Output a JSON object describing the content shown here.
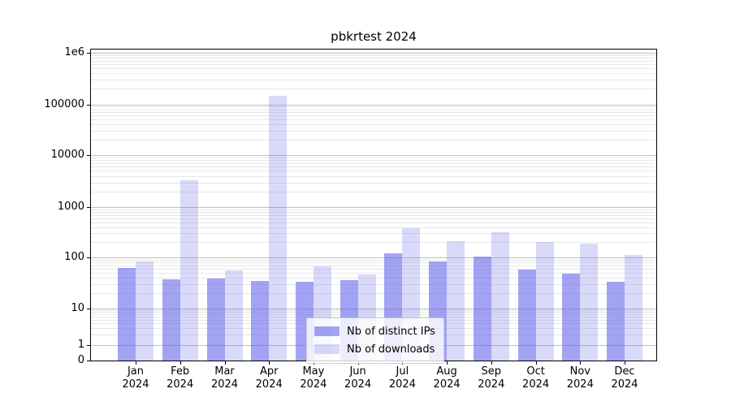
{
  "chart_data": {
    "type": "bar",
    "title": "pbkrtest 2024",
    "yscale": "symlog",
    "categories": [
      "Jan",
      "Feb",
      "Mar",
      "Apr",
      "May",
      "Jun",
      "Jul",
      "Aug",
      "Sep",
      "Oct",
      "Nov",
      "Dec"
    ],
    "x_year_label": "2024",
    "series": [
      {
        "name": "Nb of distinct IPs",
        "color": "rgba(102,102,235,0.6)",
        "values": [
          62,
          37,
          39,
          35,
          33,
          36,
          120,
          83,
          105,
          58,
          49,
          34
        ]
      },
      {
        "name": "Nb of downloads",
        "color": "rgba(102,102,235,0.25)",
        "values": [
          82,
          3300,
          55,
          145000,
          67,
          47,
          385,
          210,
          320,
          200,
          185,
          112
        ]
      }
    ],
    "y_ticks": [
      {
        "value": 0,
        "label": "0"
      },
      {
        "value": 1,
        "label": "1"
      },
      {
        "value": 10,
        "label": "10"
      },
      {
        "value": 100,
        "label": "100"
      },
      {
        "value": 1000,
        "label": "1000"
      },
      {
        "value": 10000,
        "label": "10000"
      },
      {
        "value": 100000,
        "label": "100000"
      },
      {
        "value": 1000000,
        "label": "1e6"
      }
    ],
    "ylim": [
      0,
      1000000
    ],
    "grid": "on",
    "legend_position": "lower center",
    "colors": {
      "bar_base": "#6666eb",
      "grid_major": "#bdbdbd",
      "grid_minor": "#e8e8e8",
      "spine": "#000000"
    }
  }
}
